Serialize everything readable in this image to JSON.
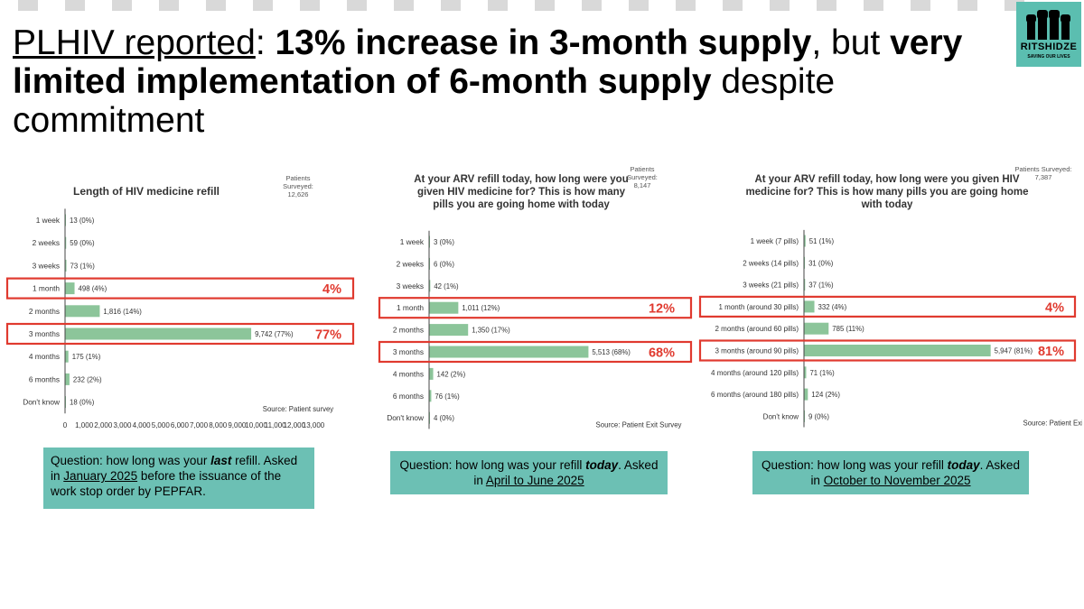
{
  "slide": {
    "title_underlined": "PLHIV reported",
    "title_colon": ": ",
    "title_bold1": "13% increase in 3-month supply",
    "title_mid": ", but ",
    "title_bold2": "very limited implementation of 6-month supply",
    "title_end": " despite commitment"
  },
  "logo": {
    "name": "RITSHIDZE",
    "tagline": "SAVING OUR LIVES",
    "icon": "raised-fists-icon",
    "color": "#5bbeb0"
  },
  "colors": {
    "bar": "#8cc59a",
    "highlight": "#e03a2f",
    "box": "#6cc0b4"
  },
  "chart_data": [
    {
      "type": "bar",
      "orientation": "horizontal",
      "title": "Length of HIV medicine refill",
      "surveyed_label": "Patients Surveyed:",
      "surveyed_count": "12,626",
      "categories": [
        "1 week",
        "2 weeks",
        "3 weeks",
        "1 month",
        "2 months",
        "3 months",
        "4 months",
        "6 months",
        "Don't know"
      ],
      "values": [
        13,
        59,
        73,
        498,
        1816,
        9742,
        175,
        232,
        18
      ],
      "data_labels": [
        "13 (0%)",
        "59 (0%)",
        "73 (1%)",
        "498 (4%)",
        "1,816 (14%)",
        "9,742 (77%)",
        "175 (1%)",
        "232 (2%)",
        "18 (0%)"
      ],
      "xlim": [
        0,
        13000
      ],
      "xticks": [
        "0",
        "1,000",
        "2,000",
        "3,000",
        "4,000",
        "5,000",
        "6,000",
        "7,000",
        "8,000",
        "9,000",
        "10,000",
        "11,000",
        "12,000",
        "13,000"
      ],
      "highlights": [
        {
          "category": "1 month",
          "label": "4%"
        },
        {
          "category": "3 months",
          "label": "77%"
        }
      ],
      "source": "Source: Patient survey",
      "question": {
        "pre": "Question: how long was your ",
        "emph": "last",
        "mid": " refill. Asked in ",
        "link": "January 2025",
        "post": " before the issuance of the work stop order by PEPFAR."
      }
    },
    {
      "type": "bar",
      "orientation": "horizontal",
      "title": "At your ARV refill today, how long were you given HIV medicine for? This is how many pills you are going home with today",
      "surveyed_label": "Patients Surveyed:",
      "surveyed_count": "8,147",
      "categories": [
        "1 week",
        "2 weeks",
        "3 weeks",
        "1 month",
        "2 months",
        "3 months",
        "4 months",
        "6 months",
        "Don't know"
      ],
      "values": [
        3,
        6,
        42,
        1011,
        1350,
        5513,
        142,
        76,
        4
      ],
      "data_labels": [
        "3 (0%)",
        "6 (0%)",
        "42 (1%)",
        "1,011 (12%)",
        "1,350 (17%)",
        "5,513 (68%)",
        "142 (2%)",
        "76 (1%)",
        "4 (0%)"
      ],
      "xlim": [
        0,
        7000
      ],
      "xticks": [
        "0",
        "1,000",
        "2,000",
        "3,000",
        "4,000",
        "5,000",
        "6,000",
        "7,000"
      ],
      "highlights": [
        {
          "category": "1 month",
          "label": "12%"
        },
        {
          "category": "3 months",
          "label": "68%"
        }
      ],
      "source": "Source: Patient Exit Survey",
      "question": {
        "pre": "Question: how long was your refill ",
        "emph": "today",
        "mid": ". Asked in ",
        "link": "April to June 2025",
        "post": ""
      }
    },
    {
      "type": "bar",
      "orientation": "horizontal",
      "title": "At your ARV refill today, how long were you given HIV medicine for? This is how many pills you are going home with today",
      "surveyed_label": "Patients Surveyed:",
      "surveyed_count": "7,387",
      "categories": [
        "1 week (7 pills)",
        "2 weeks (14 pills)",
        "3 weeks (21 pills)",
        "1 month (around 30 pills)",
        "2 months (around 60 pills)",
        "3 months (around 90 pills)",
        "4 months (around 120 pills)",
        "6 months (around 180 pills)",
        "Don't know"
      ],
      "values": [
        51,
        31,
        37,
        332,
        785,
        5947,
        71,
        124,
        9
      ],
      "data_labels": [
        "51 (1%)",
        "31 (0%)",
        "37 (1%)",
        "332 (4%)",
        "785 (11%)",
        "5,947 (81%)",
        "71 (1%)",
        "124 (2%)",
        "9 (0%)"
      ],
      "xlim": [
        0,
        8000
      ],
      "xticks": [
        "0",
        "1,000",
        "2,000",
        "3,000",
        "4,000",
        "5,000",
        "6,000",
        "7,000",
        "8,000"
      ],
      "highlights": [
        {
          "category": "1 month (around 30 pills)",
          "label": "4%"
        },
        {
          "category": "3 months (around 90 pills)",
          "label": "81%"
        }
      ],
      "source": "Source: Patient Exit Survey",
      "question": {
        "pre": "Question: how long was your refill ",
        "emph": "today",
        "mid": ". Asked in ",
        "link": "October to November 2025",
        "post": ""
      }
    }
  ]
}
